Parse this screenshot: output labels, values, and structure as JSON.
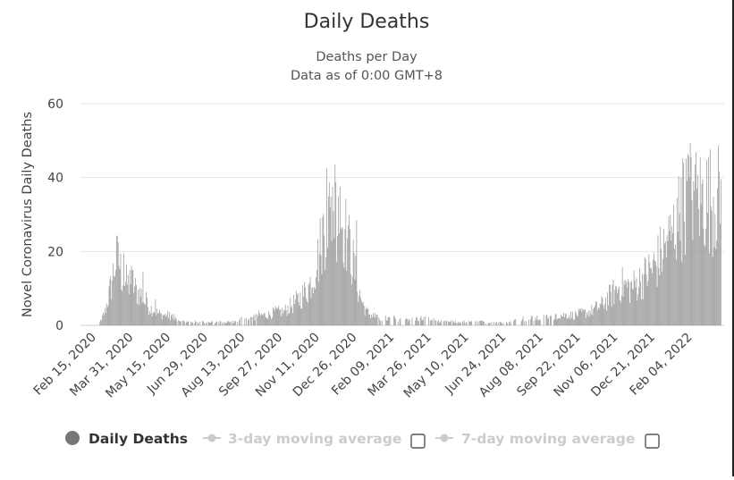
{
  "chart_data": {
    "type": "bar",
    "title": "Daily Deaths",
    "subtitle_lines": [
      "Deaths per Day",
      "Data as of 0:00 GMT+8"
    ],
    "xlabel": "",
    "ylabel": "Novel Coronavirus Daily Deaths",
    "ylim": [
      0,
      60
    ],
    "yticks": [
      0,
      20,
      40,
      60
    ],
    "grid": true,
    "x_start": "2020-02-15",
    "x_end": "2022-03-14",
    "xtick_labels": [
      "Feb 15, 2020",
      "Mar 31, 2020",
      "May 15, 2020",
      "Jun 29, 2020",
      "Aug 13, 2020",
      "Sep 27, 2020",
      "Nov 11, 2020",
      "Dec 26, 2020",
      "Feb 09, 2021",
      "Mar 26, 2021",
      "May 10, 2021",
      "Jun 24, 2021",
      "Aug 08, 2021",
      "Sep 22, 2021",
      "Nov 06, 2021",
      "Dec 21, 2021",
      "Feb 04, 2022"
    ],
    "series": [
      {
        "name": "Daily Deaths",
        "color": "#999999",
        "keypoints": [
          [
            0,
            0
          ],
          [
            6,
            0
          ],
          [
            10,
            2
          ],
          [
            14,
            4
          ],
          [
            18,
            8
          ],
          [
            22,
            12
          ],
          [
            26,
            18
          ],
          [
            30,
            20
          ],
          [
            34,
            15
          ],
          [
            38,
            13
          ],
          [
            42,
            12
          ],
          [
            46,
            13
          ],
          [
            52,
            10
          ],
          [
            58,
            9
          ],
          [
            64,
            6
          ],
          [
            70,
            5
          ],
          [
            76,
            4
          ],
          [
            82,
            3
          ],
          [
            90,
            3
          ],
          [
            100,
            2
          ],
          [
            110,
            1
          ],
          [
            120,
            1
          ],
          [
            130,
            1
          ],
          [
            140,
            1
          ],
          [
            150,
            1
          ],
          [
            160,
            1
          ],
          [
            170,
            1
          ],
          [
            180,
            2
          ],
          [
            190,
            2
          ],
          [
            200,
            3
          ],
          [
            210,
            3
          ],
          [
            220,
            4
          ],
          [
            230,
            4
          ],
          [
            240,
            6
          ],
          [
            250,
            8
          ],
          [
            260,
            11
          ],
          [
            266,
            15
          ],
          [
            272,
            20
          ],
          [
            278,
            28
          ],
          [
            284,
            32
          ],
          [
            290,
            34
          ],
          [
            296,
            33
          ],
          [
            302,
            30
          ],
          [
            308,
            24
          ],
          [
            314,
            18
          ],
          [
            318,
            13
          ],
          [
            322,
            9
          ],
          [
            326,
            6
          ],
          [
            330,
            4
          ],
          [
            336,
            3
          ],
          [
            346,
            2
          ],
          [
            360,
            2
          ],
          [
            380,
            2
          ],
          [
            400,
            2
          ],
          [
            420,
            1
          ],
          [
            440,
            1
          ],
          [
            460,
            1
          ],
          [
            480,
            1
          ],
          [
            500,
            1
          ],
          [
            520,
            2
          ],
          [
            540,
            2
          ],
          [
            560,
            3
          ],
          [
            580,
            3
          ],
          [
            600,
            4
          ],
          [
            614,
            6
          ],
          [
            626,
            9
          ],
          [
            638,
            12
          ],
          [
            648,
            11
          ],
          [
            656,
            12
          ],
          [
            664,
            14
          ],
          [
            672,
            16
          ],
          [
            680,
            18
          ],
          [
            688,
            22
          ],
          [
            696,
            25
          ],
          [
            704,
            30
          ],
          [
            712,
            35
          ],
          [
            718,
            38
          ],
          [
            723,
            39
          ],
          [
            728,
            37
          ]
        ],
        "spikes": [
          {
            "day": 30,
            "value": 22.5
          },
          {
            "day": 37,
            "value": 19.5
          },
          {
            "day": 44,
            "value": 15
          },
          {
            "day": 48,
            "value": 15
          },
          {
            "day": 60,
            "value": 14.5
          },
          {
            "day": 64,
            "value": 9
          },
          {
            "day": 75,
            "value": 7
          },
          {
            "day": 270,
            "value": 15
          },
          {
            "day": 275,
            "value": 19
          },
          {
            "day": 282,
            "value": 42.5
          },
          {
            "day": 286,
            "value": 32
          },
          {
            "day": 289,
            "value": 37.5
          },
          {
            "day": 292,
            "value": 43.5
          },
          {
            "day": 296,
            "value": 35
          },
          {
            "day": 298,
            "value": 37.5
          },
          {
            "day": 304,
            "value": 26
          },
          {
            "day": 308,
            "value": 27
          },
          {
            "day": 318,
            "value": 28.5
          },
          {
            "day": 693,
            "value": 24.5
          },
          {
            "day": 700,
            "value": 25
          },
          {
            "day": 705,
            "value": 34.5
          },
          {
            "day": 710,
            "value": 40
          },
          {
            "day": 713,
            "value": 44
          },
          {
            "day": 718,
            "value": 46.5
          },
          {
            "day": 720,
            "value": 40
          },
          {
            "day": 722,
            "value": 45.5
          },
          {
            "day": 725,
            "value": 39
          },
          {
            "day": 727,
            "value": 43.5
          }
        ]
      }
    ]
  },
  "legend": {
    "items": [
      {
        "label": "Daily Deaths",
        "color": "#777777",
        "text_color": "#333333",
        "enabled": true,
        "has_checkbox": false
      },
      {
        "label": "3-day moving average",
        "color": "#cccccc",
        "text_color": "#cccccc",
        "enabled": false,
        "has_checkbox": true
      },
      {
        "label": "7-day moving average",
        "color": "#cccccc",
        "text_color": "#cccccc",
        "enabled": false,
        "has_checkbox": true
      }
    ]
  }
}
